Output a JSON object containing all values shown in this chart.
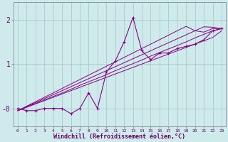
{
  "title": "",
  "xlabel": "Windchill (Refroidissement éolien,°C)",
  "ylabel": "",
  "bg_color": "#ceeaea",
  "line_color": "#880088",
  "marker_color": "#880088",
  "grid_color": "#aacccc",
  "x_data": [
    0,
    1,
    2,
    3,
    4,
    5,
    6,
    7,
    8,
    9,
    10,
    11,
    12,
    13,
    14,
    15,
    16,
    17,
    18,
    19,
    20,
    21,
    22,
    23
  ],
  "y_main": [
    0.0,
    -0.05,
    -0.05,
    0.0,
    0.0,
    0.0,
    -0.12,
    0.0,
    0.35,
    0.0,
    0.82,
    1.07,
    1.5,
    2.05,
    1.3,
    1.1,
    1.25,
    1.25,
    1.35,
    1.4,
    1.45,
    1.55,
    1.75,
    1.8
  ],
  "y_line1": [
    -0.05,
    0.025,
    0.1,
    0.175,
    0.25,
    0.325,
    0.4,
    0.475,
    0.55,
    0.625,
    0.7,
    0.775,
    0.85,
    0.925,
    1.0,
    1.075,
    1.15,
    1.225,
    1.3,
    1.375,
    1.45,
    1.525,
    1.6,
    1.75
  ],
  "y_line2": [
    -0.05,
    0.03,
    0.11,
    0.19,
    0.27,
    0.35,
    0.43,
    0.52,
    0.6,
    0.68,
    0.76,
    0.85,
    0.93,
    1.01,
    1.09,
    1.18,
    1.26,
    1.34,
    1.42,
    1.5,
    1.59,
    1.67,
    1.75,
    1.8
  ],
  "y_line3": [
    -0.05,
    0.04,
    0.13,
    0.22,
    0.31,
    0.4,
    0.49,
    0.58,
    0.67,
    0.76,
    0.85,
    0.94,
    1.03,
    1.12,
    1.21,
    1.3,
    1.39,
    1.48,
    1.57,
    1.66,
    1.75,
    1.84,
    1.83,
    1.8
  ],
  "y_line4": [
    -0.05,
    0.05,
    0.15,
    0.25,
    0.35,
    0.45,
    0.55,
    0.65,
    0.75,
    0.85,
    0.95,
    1.05,
    1.15,
    1.25,
    1.35,
    1.45,
    1.55,
    1.65,
    1.75,
    1.85,
    1.75,
    1.72,
    1.8,
    1.8
  ],
  "yticks": [
    0,
    1,
    2
  ],
  "ytick_labels": [
    "-0",
    "1",
    "2"
  ],
  "ylim": [
    -0.4,
    2.4
  ],
  "xlim": [
    -0.5,
    23.5
  ],
  "xtick_labels": [
    "0",
    "1",
    "2",
    "3",
    "4",
    "5",
    "6",
    "7",
    "8",
    "9",
    "10",
    "11",
    "12",
    "13",
    "14",
    "15",
    "16",
    "17",
    "18",
    "19",
    "20",
    "21",
    "22",
    "23"
  ]
}
